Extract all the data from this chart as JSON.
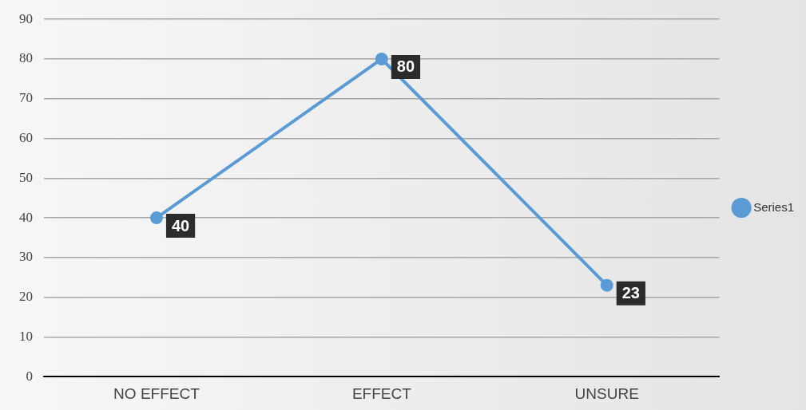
{
  "chart_data": {
    "type": "line",
    "categories": [
      "NO EFFECT",
      "EFFECT",
      "UNSURE"
    ],
    "series": [
      {
        "name": "Series1",
        "color": "#5b9bd5",
        "values": [
          40,
          80,
          23
        ]
      }
    ],
    "ylim": [
      0,
      90
    ],
    "yticks": [
      0,
      10,
      20,
      30,
      40,
      50,
      60,
      70,
      80,
      90
    ],
    "grid": "y",
    "legend": "right",
    "marker": "circle",
    "line_style": "solid",
    "data_labels": true
  }
}
